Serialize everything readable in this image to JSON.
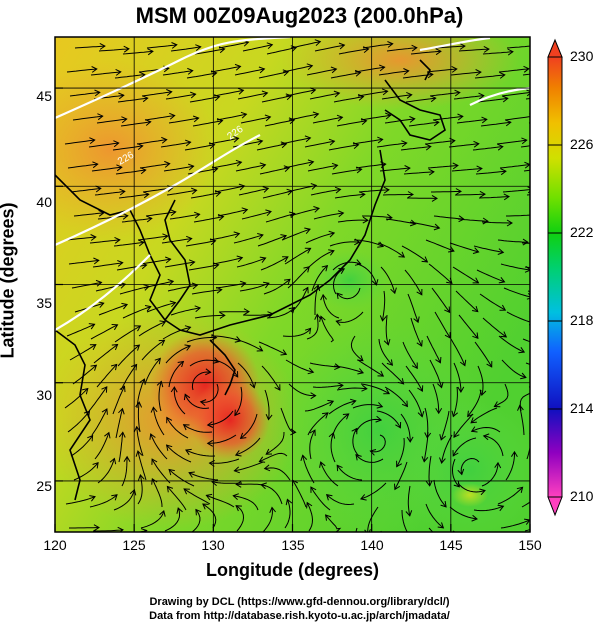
{
  "title": "MSM 00Z09Aug2023 (200.0hPa)",
  "xaxis": {
    "label": "Longitude (degrees)",
    "range": [
      120,
      150
    ],
    "ticks": [
      "120",
      "125",
      "130",
      "135",
      "140",
      "145",
      "150"
    ]
  },
  "yaxis": {
    "label": "Latitude  (degrees)",
    "range": [
      22.4,
      47.6
    ],
    "ticks": [
      "25",
      "30",
      "35",
      "40",
      "45"
    ]
  },
  "colorbar": {
    "range": [
      210,
      230
    ],
    "ticks": [
      "230",
      "226",
      "222",
      "218",
      "214",
      "210"
    ],
    "colors": [
      "#ff40c0",
      "#9000c0",
      "#1010c0",
      "#1060ff",
      "#00c0e0",
      "#00d070",
      "#10d010",
      "#70e000",
      "#d0e000",
      "#f0c000",
      "#f08000",
      "#f04020"
    ]
  },
  "contour_labels": [
    "226",
    "226"
  ],
  "credits": {
    "line1": "Drawing by DCL (https://www.gfd-dennou.org/library/dcl/)",
    "line2": "Data from http://database.rish.kyoto-u.ac.jp/arch/jmadata/"
  }
}
